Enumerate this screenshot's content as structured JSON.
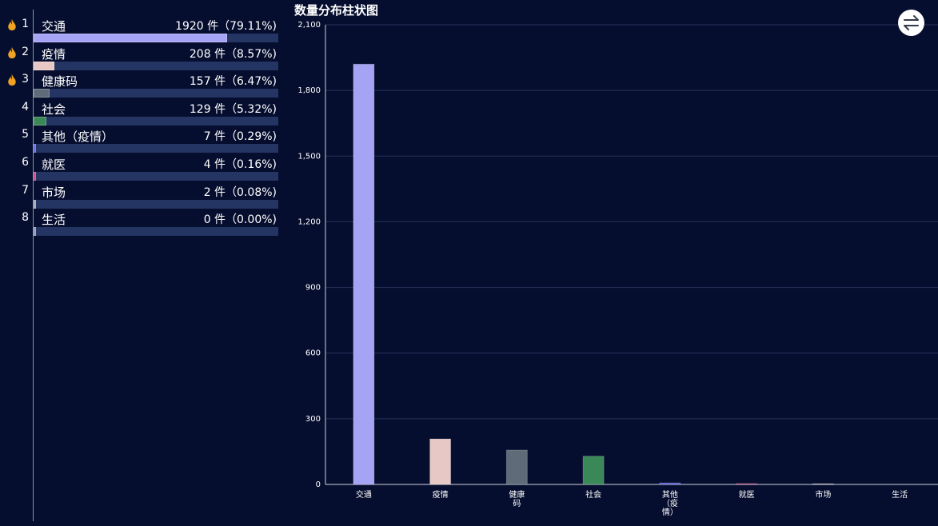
{
  "chart_title": "数量分布柱状图",
  "swap_icon": "swap-arrows-icon",
  "ranking": [
    {
      "rank": "1",
      "name": "交通",
      "stat": "1920 件（79.11%)",
      "pct": 79.11,
      "color": "#a5a3f4",
      "hot": true
    },
    {
      "rank": "2",
      "name": "疫情",
      "stat": "208 件（8.57%)",
      "pct": 8.57,
      "color": "#e8c8c5",
      "hot": true
    },
    {
      "rank": "3",
      "name": "健康码",
      "stat": "157 件（6.47%)",
      "pct": 6.47,
      "color": "#5f6b78",
      "hot": true
    },
    {
      "rank": "4",
      "name": "社会",
      "stat": "129 件（5.32%)",
      "pct": 5.32,
      "color": "#3a8757",
      "hot": false
    },
    {
      "rank": "5",
      "name": "其他（疫情）",
      "stat": "7 件（0.29%)",
      "pct": 0.29,
      "color": "#5b5fd8",
      "hot": false
    },
    {
      "rank": "6",
      "name": "就医",
      "stat": "4 件（0.16%)",
      "pct": 0.16,
      "color": "#c2417f",
      "hot": false
    },
    {
      "rank": "7",
      "name": "市场",
      "stat": "2 件（0.08%)",
      "pct": 0.08,
      "color": "#9aa0ae",
      "hot": false
    },
    {
      "rank": "8",
      "name": "生活",
      "stat": "0 件（0.00%)",
      "pct": 0.0,
      "color": "#8a93ad",
      "hot": false
    }
  ],
  "chart_data": {
    "type": "bar",
    "title": "数量分布柱状图",
    "categories": [
      "交通",
      "疫情",
      "健康码",
      "社会",
      "其他（疫情）",
      "就医",
      "市场",
      "生活"
    ],
    "values": [
      1920,
      208,
      157,
      129,
      7,
      4,
      2,
      0
    ],
    "colors": [
      "#a5a3f4",
      "#e8c8c5",
      "#5f6b78",
      "#3a8757",
      "#5b5fd8",
      "#c2417f",
      "#9aa0ae",
      "#8a93ad"
    ],
    "ylim": [
      0,
      2100
    ],
    "yticks": [
      0,
      300,
      600,
      900,
      1200,
      1500,
      1800,
      2100
    ],
    "ytick_labels": [
      "0",
      "300",
      "600",
      "900",
      "1,200",
      "1,500",
      "1,800",
      "2,100"
    ],
    "grid": true,
    "xlabel": "",
    "ylabel": ""
  }
}
